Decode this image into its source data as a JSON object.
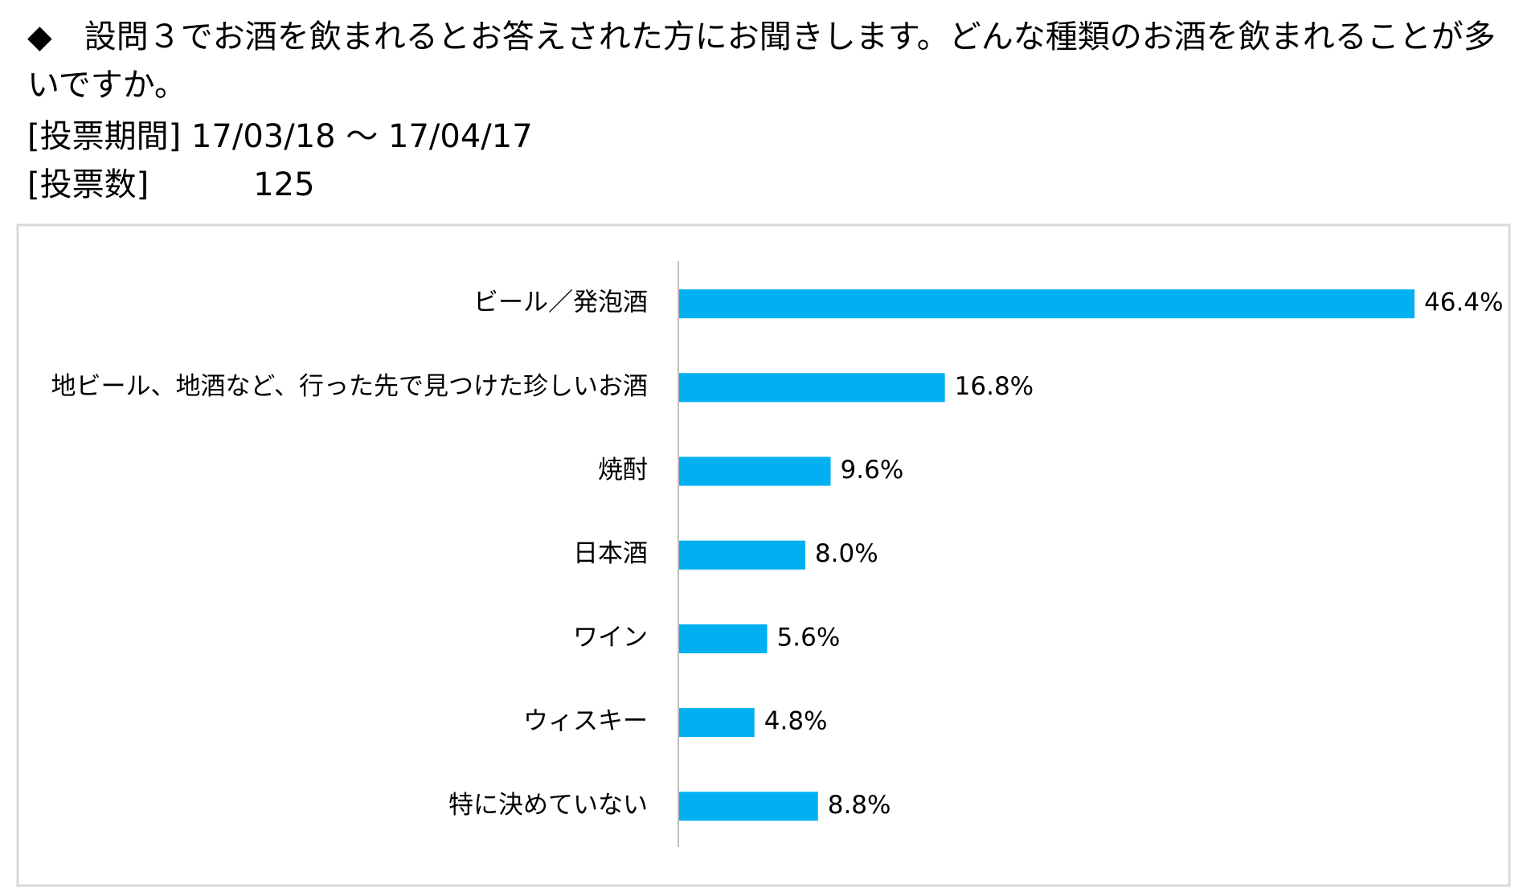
{
  "header": {
    "question": "◆　設問３でお酒を飲まれるとお答えされた方にお聞きします。どんな種類のお酒を飲まれることが多いですか。",
    "period_label": "[投票期間]",
    "period": "17/03/18 ～ 17/04/17",
    "votes_label": "[投票数]",
    "votes": "125"
  },
  "chart_data": {
    "type": "bar",
    "orientation": "horizontal",
    "color": "#00b0f0",
    "categories": [
      "ビール／発泡酒",
      "地ビール、地酒など、行った先で見つけた珍しいお酒",
      "焼酎",
      "日本酒",
      "ワイン",
      "ウィスキー",
      "特に決めていない"
    ],
    "values": [
      46.4,
      16.8,
      9.6,
      8.0,
      5.6,
      4.8,
      8.8
    ],
    "value_labels": [
      "46.4%",
      "16.8%",
      "9.6%",
      "8.0%",
      "5.6%",
      "4.8%",
      "8.8%"
    ]
  }
}
